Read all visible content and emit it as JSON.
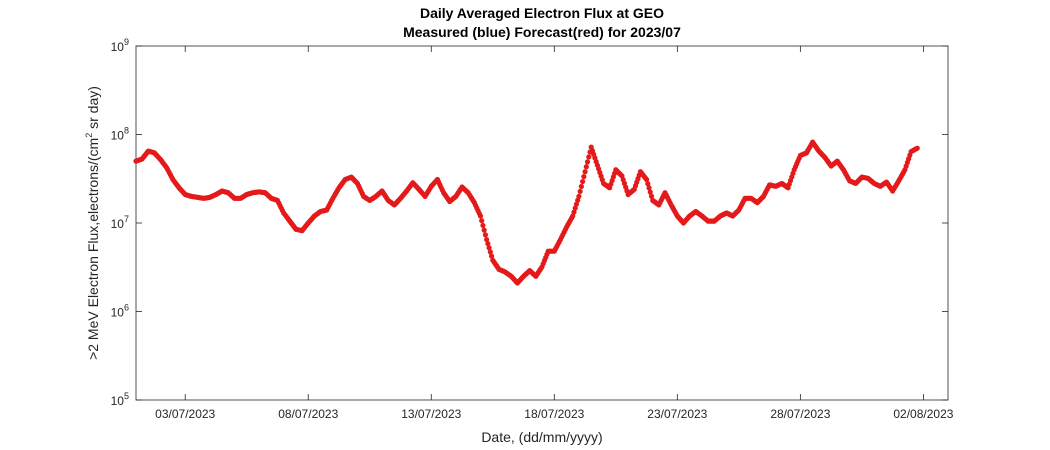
{
  "chart_data": {
    "type": "scatter",
    "title": "Daily Averaged Electron Flux at GEO",
    "subtitle": "Measured (blue) Forecast(red) for 2023/07",
    "xlabel": "Date, (dd/mm/yyyy)",
    "ylabel_main": ">2 MeV Electron Flux,electrons/(cm",
    "ylabel_sup": "2",
    "ylabel_end": " sr day)",
    "xlim": [
      "2023-07-01",
      "2023-08-03"
    ],
    "ylim": [
      100000,
      1000000000
    ],
    "yscale": "log",
    "grid": false,
    "x_ticks": [
      {
        "date": "2023-07-03",
        "label": "03/07/2023"
      },
      {
        "date": "2023-07-08",
        "label": "08/07/2023"
      },
      {
        "date": "2023-07-13",
        "label": "13/07/2023"
      },
      {
        "date": "2023-07-18",
        "label": "18/07/2023"
      },
      {
        "date": "2023-07-23",
        "label": "23/07/2023"
      },
      {
        "date": "2023-07-28",
        "label": "28/07/2023"
      },
      {
        "date": "2023-08-02",
        "label": "02/08/2023"
      }
    ],
    "y_ticks": [
      {
        "value": 100000,
        "base": "10",
        "exp": "5"
      },
      {
        "value": 1000000,
        "base": "10",
        "exp": "6"
      },
      {
        "value": 10000000,
        "base": "10",
        "exp": "7"
      },
      {
        "value": 100000000,
        "base": "10",
        "exp": "8"
      },
      {
        "value": 1000000000,
        "base": "10",
        "exp": "9"
      }
    ],
    "series": [
      {
        "color": "#e41a1a",
        "points": [
          [
            "2023-07-01 00:00",
            50000000.0
          ],
          [
            "2023-07-01 06:00",
            53000000.0
          ],
          [
            "2023-07-01 12:00",
            65000000.0
          ],
          [
            "2023-07-01 18:00",
            62000000.0
          ],
          [
            "2023-07-02 00:00",
            52000000.0
          ],
          [
            "2023-07-02 06:00",
            42000000.0
          ],
          [
            "2023-07-02 12:00",
            31000000.0
          ],
          [
            "2023-07-02 18:00",
            25000000.0
          ],
          [
            "2023-07-03 00:00",
            21000000.0
          ],
          [
            "2023-07-03 06:00",
            20000000.0
          ],
          [
            "2023-07-03 12:00",
            19500000.0
          ],
          [
            "2023-07-03 18:00",
            19000000.0
          ],
          [
            "2023-07-04 00:00",
            19500000.0
          ],
          [
            "2023-07-04 06:00",
            21000000.0
          ],
          [
            "2023-07-04 12:00",
            23000000.0
          ],
          [
            "2023-07-04 18:00",
            22000000.0
          ],
          [
            "2023-07-05 00:00",
            19000000.0
          ],
          [
            "2023-07-05 06:00",
            19000000.0
          ],
          [
            "2023-07-05 12:00",
            21000000.0
          ],
          [
            "2023-07-05 18:00",
            22000000.0
          ],
          [
            "2023-07-06 00:00",
            22500000.0
          ],
          [
            "2023-07-06 06:00",
            22000000.0
          ],
          [
            "2023-07-06 12:00",
            19000000.0
          ],
          [
            "2023-07-06 18:00",
            18000000.0
          ],
          [
            "2023-07-07 00:00",
            13000000.0
          ],
          [
            "2023-07-07 06:00",
            10500000.0
          ],
          [
            "2023-07-07 12:00",
            8500000.0
          ],
          [
            "2023-07-07 18:00",
            8200000.0
          ],
          [
            "2023-07-08 00:00",
            10000000.0
          ],
          [
            "2023-07-08 06:00",
            12000000.0
          ],
          [
            "2023-07-08 12:00",
            13500000.0
          ],
          [
            "2023-07-08 18:00",
            14000000.0
          ],
          [
            "2023-07-09 00:00",
            19000000.0
          ],
          [
            "2023-07-09 06:00",
            25000000.0
          ],
          [
            "2023-07-09 12:00",
            31000000.0
          ],
          [
            "2023-07-09 18:00",
            33000000.0
          ],
          [
            "2023-07-10 00:00",
            28000000.0
          ],
          [
            "2023-07-10 06:00",
            20000000.0
          ],
          [
            "2023-07-10 12:00",
            18000000.0
          ],
          [
            "2023-07-10 18:00",
            20000000.0
          ],
          [
            "2023-07-11 00:00",
            23000000.0
          ],
          [
            "2023-07-11 06:00",
            18000000.0
          ],
          [
            "2023-07-11 12:00",
            16000000.0
          ],
          [
            "2023-07-11 18:00",
            19000000.0
          ],
          [
            "2023-07-12 00:00",
            23000000.0
          ],
          [
            "2023-07-12 06:00",
            28500000.0
          ],
          [
            "2023-07-12 12:00",
            24000000.0
          ],
          [
            "2023-07-12 18:00",
            20000000.0
          ],
          [
            "2023-07-13 00:00",
            26000000.0
          ],
          [
            "2023-07-13 06:00",
            31000000.0
          ],
          [
            "2023-07-13 12:00",
            22000000.0
          ],
          [
            "2023-07-13 18:00",
            17500000.0
          ],
          [
            "2023-07-14 00:00",
            20000000.0
          ],
          [
            "2023-07-14 06:00",
            25500000.0
          ],
          [
            "2023-07-14 12:00",
            22000000.0
          ],
          [
            "2023-07-14 18:00",
            17000000.0
          ],
          [
            "2023-07-15 00:00",
            12000000.0
          ],
          [
            "2023-07-15 06:00",
            6500000.0
          ],
          [
            "2023-07-15 12:00",
            3800000.0
          ],
          [
            "2023-07-15 18:00",
            3000000.0
          ],
          [
            "2023-07-16 00:00",
            2800000.0
          ],
          [
            "2023-07-16 06:00",
            2500000.0
          ],
          [
            "2023-07-16 12:00",
            2100000.0
          ],
          [
            "2023-07-16 18:00",
            2500000.0
          ],
          [
            "2023-07-17 00:00",
            2900000.0
          ],
          [
            "2023-07-17 06:00",
            2500000.0
          ],
          [
            "2023-07-17 12:00",
            3200000.0
          ],
          [
            "2023-07-17 18:00",
            4800000.0
          ],
          [
            "2023-07-18 00:00",
            4800000.0
          ],
          [
            "2023-07-18 06:00",
            6500000.0
          ],
          [
            "2023-07-18 12:00",
            9000000.0
          ],
          [
            "2023-07-18 18:00",
            12000000.0
          ],
          [
            "2023-07-19 00:00",
            20000000.0
          ],
          [
            "2023-07-19 06:00",
            38000000.0
          ],
          [
            "2023-07-19 12:00",
            72000000.0
          ],
          [
            "2023-07-19 18:00",
            45000000.0
          ],
          [
            "2023-07-20 00:00",
            28000000.0
          ],
          [
            "2023-07-20 06:00",
            25000000.0
          ],
          [
            "2023-07-20 12:00",
            40000000.0
          ],
          [
            "2023-07-20 18:00",
            34000000.0
          ],
          [
            "2023-07-21 00:00",
            21000000.0
          ],
          [
            "2023-07-21 06:00",
            24000000.0
          ],
          [
            "2023-07-21 12:00",
            38000000.0
          ],
          [
            "2023-07-21 18:00",
            31000000.0
          ],
          [
            "2023-07-22 00:00",
            18000000.0
          ],
          [
            "2023-07-22 06:00",
            16000000.0
          ],
          [
            "2023-07-22 12:00",
            22000000.0
          ],
          [
            "2023-07-22 18:00",
            16000000.0
          ],
          [
            "2023-07-23 00:00",
            12000000.0
          ],
          [
            "2023-07-23 06:00",
            10000000.0
          ],
          [
            "2023-07-23 12:00",
            12000000.0
          ],
          [
            "2023-07-23 18:00",
            13500000.0
          ],
          [
            "2023-07-24 00:00",
            12000000.0
          ],
          [
            "2023-07-24 06:00",
            10500000.0
          ],
          [
            "2023-07-24 12:00",
            10500000.0
          ],
          [
            "2023-07-24 18:00",
            12000000.0
          ],
          [
            "2023-07-25 00:00",
            13000000.0
          ],
          [
            "2023-07-25 06:00",
            12000000.0
          ],
          [
            "2023-07-25 12:00",
            14000000.0
          ],
          [
            "2023-07-25 18:00",
            19000000.0
          ],
          [
            "2023-07-26 00:00",
            19000000.0
          ],
          [
            "2023-07-26 06:00",
            17000000.0
          ],
          [
            "2023-07-26 12:00",
            20000000.0
          ],
          [
            "2023-07-26 18:00",
            27000000.0
          ],
          [
            "2023-07-27 00:00",
            26000000.0
          ],
          [
            "2023-07-27 06:00",
            28000000.0
          ],
          [
            "2023-07-27 12:00",
            25000000.0
          ],
          [
            "2023-07-27 18:00",
            40000000.0
          ],
          [
            "2023-07-28 00:00",
            58000000.0
          ],
          [
            "2023-07-28 06:00",
            62000000.0
          ],
          [
            "2023-07-28 12:00",
            82000000.0
          ],
          [
            "2023-07-28 18:00",
            65000000.0
          ],
          [
            "2023-07-29 00:00",
            55000000.0
          ],
          [
            "2023-07-29 06:00",
            44000000.0
          ],
          [
            "2023-07-29 12:00",
            50000000.0
          ],
          [
            "2023-07-29 18:00",
            40000000.0
          ],
          [
            "2023-07-30 00:00",
            30000000.0
          ],
          [
            "2023-07-30 06:00",
            28000000.0
          ],
          [
            "2023-07-30 12:00",
            33000000.0
          ],
          [
            "2023-07-30 18:00",
            32000000.0
          ],
          [
            "2023-07-31 00:00",
            28000000.0
          ],
          [
            "2023-07-31 06:00",
            26000000.0
          ],
          [
            "2023-07-31 12:00",
            29000000.0
          ],
          [
            "2023-07-31 18:00",
            23000000.0
          ],
          [
            "2023-08-01 00:00",
            30000000.0
          ],
          [
            "2023-08-01 06:00",
            40000000.0
          ],
          [
            "2023-08-01 12:00",
            64000000.0
          ],
          [
            "2023-08-01 18:00",
            70000000.0
          ]
        ]
      }
    ]
  }
}
